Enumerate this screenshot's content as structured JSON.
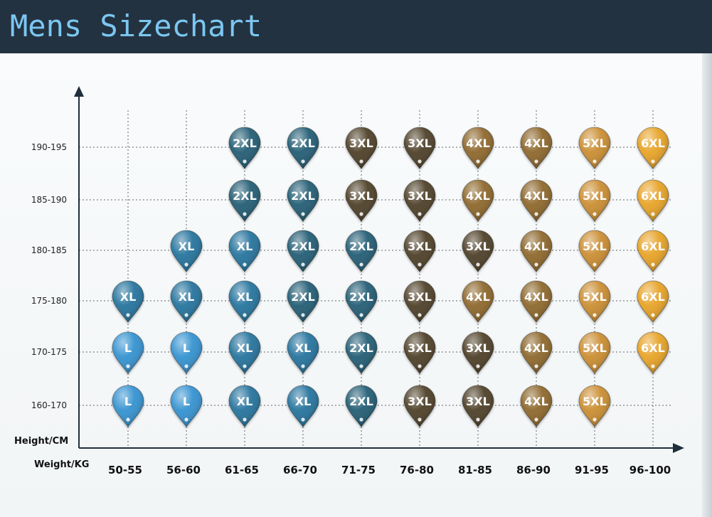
{
  "title": "Mens Sizechart",
  "chart_data": {
    "type": "table",
    "xlabel": "Weight/KG",
    "ylabel": "Height/CM",
    "x_categories": [
      "50-55",
      "56-60",
      "61-65",
      "66-70",
      "71-75",
      "76-80",
      "81-85",
      "86-90",
      "91-95",
      "96-100"
    ],
    "y_categories": [
      "160-170",
      "170-175",
      "175-180",
      "180-185",
      "185-190",
      "190-195"
    ],
    "grid": true,
    "cells": [
      [
        "L",
        "L",
        "XL",
        "XL",
        "2XL",
        "3XL",
        "3XL",
        "4XL",
        "5XL",
        ""
      ],
      [
        "L",
        "L",
        "XL",
        "XL",
        "2XL",
        "3XL",
        "3XL",
        "4XL",
        "5XL",
        "6XL"
      ],
      [
        "XL",
        "XL",
        "XL",
        "2XL",
        "2XL",
        "3XL",
        "4XL",
        "4XL",
        "5XL",
        "6XL"
      ],
      [
        "",
        "XL",
        "XL",
        "2XL",
        "2XL",
        "3XL",
        "3XL",
        "4XL",
        "5XL",
        "6XL"
      ],
      [
        "",
        "",
        "2XL",
        "2XL",
        "3XL",
        "3XL",
        "4XL",
        "4XL",
        "5XL",
        "6XL"
      ],
      [
        "",
        "",
        "2XL",
        "2XL",
        "3XL",
        "3XL",
        "4XL",
        "4XL",
        "5XL",
        "6XL"
      ]
    ],
    "size_colors": {
      "L": "#2f8fcf",
      "XL": "#1f6f9a",
      "2XL": "#1c5870",
      "3XL": "#4a3b22",
      "4XL": "#8a6326",
      "5XL": "#c98a2c",
      "6XL": "#e6a020"
    }
  }
}
